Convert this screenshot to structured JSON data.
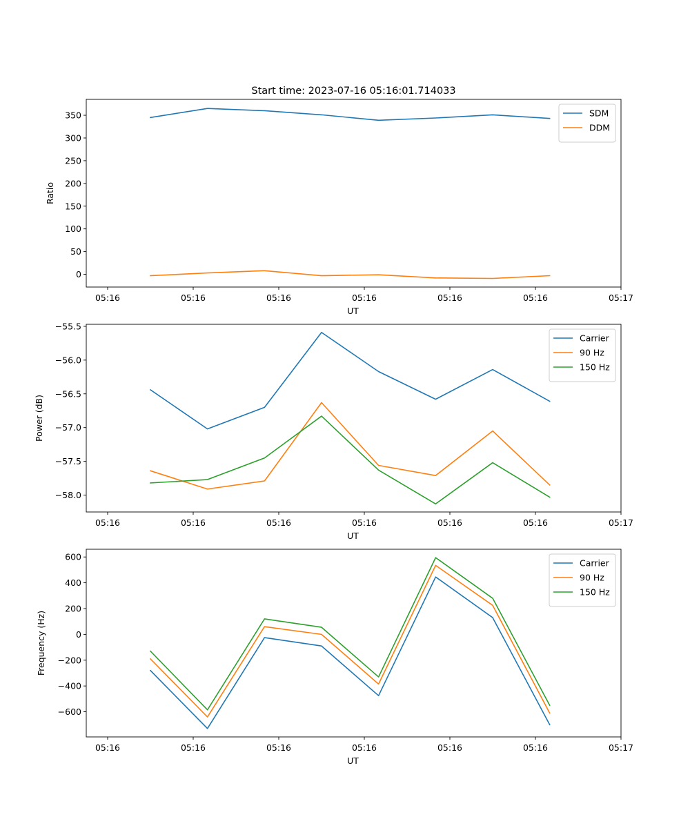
{
  "figure": {
    "title": "Start time: 2023-07-16 05:16:01.714033"
  },
  "chart_data": [
    {
      "type": "line",
      "title": "Start time: 2023-07-16 05:16:01.714033",
      "xlabel": "UT",
      "ylabel": "Ratio",
      "xticks": [
        "05:16",
        "05:16",
        "05:16",
        "05:16",
        "05:16",
        "05:16",
        "05:17"
      ],
      "yticks": [
        0,
        50,
        100,
        150,
        200,
        250,
        300,
        350
      ],
      "xlim": [
        -0.5,
        12.0
      ],
      "ylim": [
        -28,
        385
      ],
      "x": [
        1,
        2.333,
        3.667,
        5,
        6.333,
        7.667,
        9,
        10.333
      ],
      "legend": "upper-right",
      "series": [
        {
          "name": "SDM",
          "color": "#1f77b4",
          "values": [
            345,
            365,
            360,
            351,
            339,
            344,
            351,
            343
          ]
        },
        {
          "name": "DDM",
          "color": "#ff7f0e",
          "values": [
            -3,
            3,
            8,
            -3,
            -1,
            -8,
            -9,
            -3
          ]
        }
      ]
    },
    {
      "type": "line",
      "title": "",
      "xlabel": "UT",
      "ylabel": "Power (dB)",
      "xticks": [
        "05:16",
        "05:16",
        "05:16",
        "05:16",
        "05:16",
        "05:16",
        "05:17"
      ],
      "yticks": [
        -58.0,
        -57.5,
        -57.0,
        -56.5,
        -56.0,
        -55.5
      ],
      "xlim": [
        -0.5,
        12.0
      ],
      "ylim": [
        -58.25,
        -55.47
      ],
      "x": [
        1,
        2.333,
        3.667,
        5,
        6.333,
        7.667,
        9,
        10.333
      ],
      "legend": "upper-right",
      "series": [
        {
          "name": "Carrier",
          "color": "#1f77b4",
          "values": [
            -56.44,
            -57.02,
            -56.7,
            -55.59,
            -56.17,
            -56.58,
            -56.14,
            -56.61
          ]
        },
        {
          "name": "90 Hz",
          "color": "#ff7f0e",
          "values": [
            -57.64,
            -57.91,
            -57.79,
            -56.63,
            -57.56,
            -57.71,
            -57.05,
            -57.85
          ]
        },
        {
          "name": "150 Hz",
          "color": "#2ca02c",
          "values": [
            -57.82,
            -57.77,
            -57.45,
            -56.83,
            -57.63,
            -58.13,
            -57.52,
            -58.03
          ]
        }
      ]
    },
    {
      "type": "line",
      "title": "",
      "xlabel": "UT",
      "ylabel": "Frequency (Hz)",
      "xticks": [
        "05:16",
        "05:16",
        "05:16",
        "05:16",
        "05:16",
        "05:16",
        "05:17"
      ],
      "yticks": [
        -600,
        -400,
        -200,
        0,
        200,
        400,
        600
      ],
      "xlim": [
        -0.5,
        12.0
      ],
      "ylim": [
        -795,
        660
      ],
      "x": [
        1,
        2.333,
        3.667,
        5,
        6.333,
        7.667,
        9,
        10.333
      ],
      "legend": "upper-right",
      "series": [
        {
          "name": "Carrier",
          "color": "#1f77b4",
          "values": [
            -280,
            -730,
            -25,
            -90,
            -475,
            445,
            130,
            -700
          ]
        },
        {
          "name": "90 Hz",
          "color": "#ff7f0e",
          "values": [
            -190,
            -640,
            60,
            0,
            -385,
            535,
            225,
            -610
          ]
        },
        {
          "name": "150 Hz",
          "color": "#2ca02c",
          "values": [
            -130,
            -585,
            120,
            55,
            -330,
            595,
            280,
            -550
          ]
        }
      ]
    }
  ]
}
